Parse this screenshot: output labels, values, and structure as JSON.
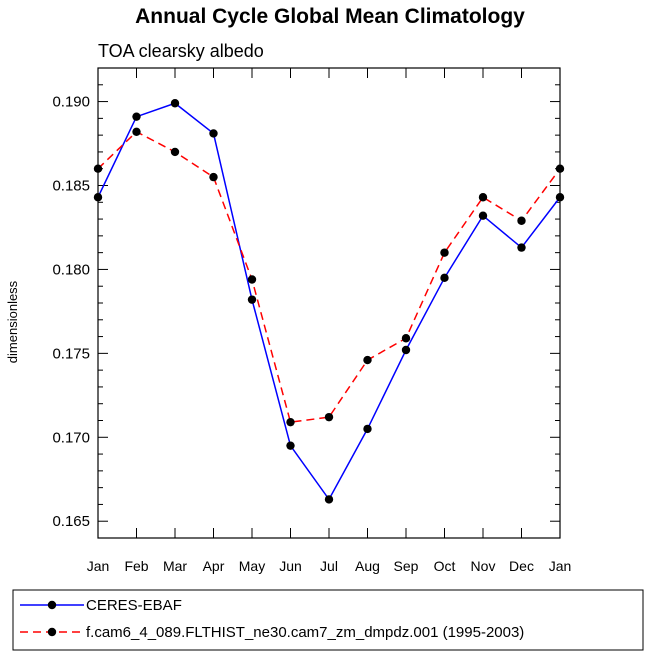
{
  "chart_data": {
    "type": "line",
    "title": "Annual Cycle Global Mean Climatology",
    "subtitle": "TOA clearsky albedo",
    "xlabel": "",
    "ylabel": "dimensionless",
    "categories": [
      "Jan",
      "Feb",
      "Mar",
      "Apr",
      "May",
      "Jun",
      "Jul",
      "Aug",
      "Sep",
      "Oct",
      "Nov",
      "Dec",
      "Jan"
    ],
    "ylim": [
      0.164,
      0.192
    ],
    "yticks": [
      0.165,
      0.17,
      0.175,
      0.18,
      0.185,
      0.19
    ],
    "ytick_labels": [
      "0.165",
      "0.170",
      "0.175",
      "0.180",
      "0.185",
      "0.190"
    ],
    "grid": false,
    "legend_position": "bottom",
    "series": [
      {
        "name": "CERES-EBAF",
        "color": "#0000ff",
        "line_style": "solid",
        "marker": "filled-circle",
        "values": [
          0.1843,
          0.1891,
          0.1899,
          0.1881,
          0.1782,
          0.1695,
          0.1663,
          0.1705,
          0.1752,
          0.1795,
          0.1832,
          0.1813,
          0.1843
        ]
      },
      {
        "name": "f.cam6_4_089.FLTHIST_ne30.cam7_zm_dmpdz.001 (1995-2003)",
        "color": "#ff0000",
        "line_style": "dashed",
        "marker": "filled-circle",
        "values": [
          0.186,
          0.1882,
          0.187,
          0.1855,
          0.1794,
          0.1709,
          0.1712,
          0.1746,
          0.1759,
          0.181,
          0.1843,
          0.1829,
          0.186
        ]
      }
    ]
  }
}
